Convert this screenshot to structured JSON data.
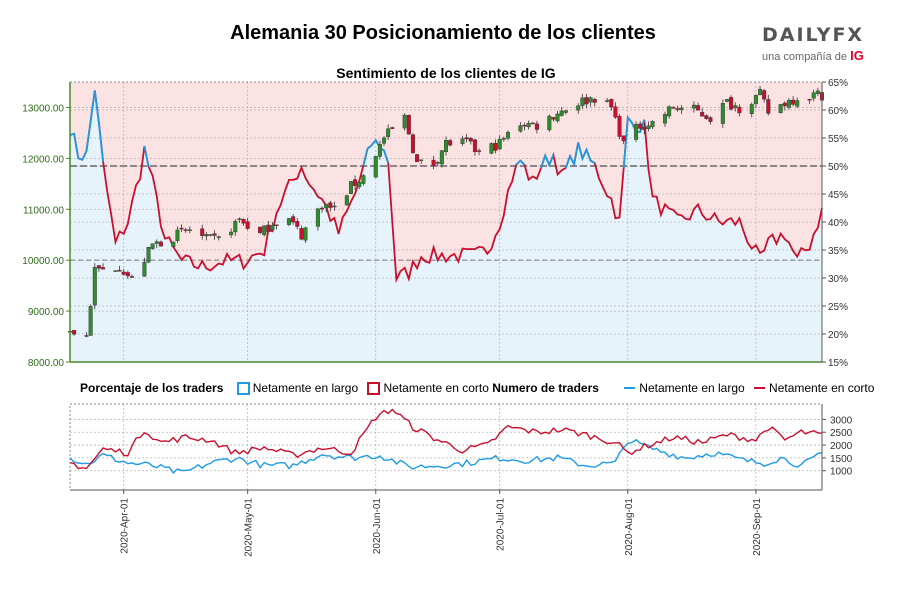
{
  "header": {
    "title": "Alemania 30 Posicionamiento de los clientes",
    "subtitle": "Sentimiento de los clientes de IG",
    "logo_main": "DAILYFX",
    "logo_sub": "una compañía de",
    "logo_brand": "IG"
  },
  "colors": {
    "long": "#1f9be2",
    "short": "#c8102e",
    "long_fill": "#e6f3fb",
    "short_fill": "#fbe3e3",
    "candle_up": "#2e8b2e",
    "candle_down": "#c8102e",
    "axis_left": "#4a8a2a"
  },
  "legend": {
    "pct_title": "Porcentaje de los traders",
    "pct_long": "Netamente en largo",
    "pct_short": "Netamente en corto",
    "num_title": "Numero de traders",
    "num_long": "Netamente en largo",
    "num_short": "Netamente en corto"
  },
  "chart_data": [
    {
      "type": "candlestick_with_sentiment",
      "title": "Sentimiento de los clientes de IG",
      "price_axis": {
        "side": "left",
        "min": 8000,
        "max": 13500,
        "ticks": [
          "8000.00",
          "9000.00",
          "10000.00",
          "11000.00",
          "12000.00",
          "13000.00"
        ]
      },
      "pct_axis": {
        "side": "right",
        "min": 15,
        "max": 65,
        "ticks": [
          "15%",
          "20%",
          "25%",
          "30%",
          "35%",
          "40%",
          "45%",
          "50%",
          "55%",
          "60%",
          "65%"
        ],
        "reference": 50
      },
      "x_range": [
        "2020-03-19",
        "2020-09-17"
      ],
      "x_ticks": [
        "2020-Apr-01",
        "2020-May-01",
        "2020-Jun-01",
        "2020-Jul-01",
        "2020-Aug-01",
        "2020-Sep-01"
      ],
      "grid": true,
      "price_keypoints": [
        [
          "2020-03-19",
          8600
        ],
        [
          "2020-03-23",
          8500
        ],
        [
          "2020-03-25",
          9800
        ],
        [
          "2020-03-27",
          9800
        ],
        [
          "2020-03-31",
          9900
        ],
        [
          "2020-04-03",
          9600
        ],
        [
          "2020-04-08",
          10300
        ],
        [
          "2020-04-14",
          10500
        ],
        [
          "2020-04-17",
          10600
        ],
        [
          "2020-04-21",
          10400
        ],
        [
          "2020-04-24",
          10400
        ],
        [
          "2020-04-29",
          10800
        ],
        [
          "2020-05-04",
          10500
        ],
        [
          "2020-05-07",
          10750
        ],
        [
          "2020-05-11",
          10800
        ],
        [
          "2020-05-14",
          10500
        ],
        [
          "2020-05-19",
          11100
        ],
        [
          "2020-05-22",
          11000
        ],
        [
          "2020-05-26",
          11450
        ],
        [
          "2020-05-29",
          11650
        ],
        [
          "2020-06-03",
          12400
        ],
        [
          "2020-06-08",
          12800
        ],
        [
          "2020-06-11",
          11900
        ],
        [
          "2020-06-15",
          11900
        ],
        [
          "2020-06-18",
          12300
        ],
        [
          "2020-06-23",
          12300
        ],
        [
          "2020-06-26",
          12100
        ],
        [
          "2020-07-01",
          12300
        ],
        [
          "2020-07-06",
          12700
        ],
        [
          "2020-07-10",
          12650
        ],
        [
          "2020-07-15",
          12900
        ],
        [
          "2020-07-20",
          13100
        ],
        [
          "2020-07-24",
          13200
        ],
        [
          "2020-07-28",
          13000
        ],
        [
          "2020-07-31",
          12300
        ],
        [
          "2020-08-04",
          12650
        ],
        [
          "2020-08-07",
          12700
        ],
        [
          "2020-08-12",
          13000
        ],
        [
          "2020-08-17",
          12950
        ],
        [
          "2020-08-21",
          12800
        ],
        [
          "2020-08-25",
          13100
        ],
        [
          "2020-08-28",
          13000
        ],
        [
          "2020-09-02",
          13250
        ],
        [
          "2020-09-04",
          12900
        ],
        [
          "2020-09-08",
          13100
        ],
        [
          "2020-09-11",
          13200
        ],
        [
          "2020-09-16",
          13250
        ]
      ],
      "long_pct": [
        [
          "2020-03-19",
          57
        ],
        [
          "2020-03-21",
          52
        ],
        [
          "2020-03-23",
          52
        ],
        [
          "2020-03-25",
          64
        ],
        [
          "2020-03-27",
          50
        ],
        [
          "2020-03-30",
          36
        ],
        [
          "2020-04-02",
          40
        ],
        [
          "2020-04-05",
          49
        ],
        [
          "2020-04-06",
          53
        ],
        [
          "2020-04-08",
          47
        ],
        [
          "2020-04-11",
          37
        ],
        [
          "2020-04-15",
          33
        ],
        [
          "2020-04-20",
          32
        ],
        [
          "2020-04-25",
          33
        ],
        [
          "2020-04-30",
          33
        ],
        [
          "2020-05-05",
          35
        ],
        [
          "2020-05-08",
          42
        ],
        [
          "2020-05-10",
          45
        ],
        [
          "2020-05-14",
          50
        ],
        [
          "2020-05-16",
          47
        ],
        [
          "2020-05-19",
          44
        ],
        [
          "2020-05-23",
          38
        ],
        [
          "2020-05-27",
          45
        ],
        [
          "2020-05-31",
          54
        ],
        [
          "2020-06-02",
          54
        ],
        [
          "2020-06-04",
          51
        ],
        [
          "2020-06-06",
          30
        ],
        [
          "2020-06-09",
          31
        ],
        [
          "2020-06-12",
          34
        ],
        [
          "2020-06-16",
          34
        ],
        [
          "2020-06-20",
          34
        ],
        [
          "2020-06-25",
          34
        ],
        [
          "2020-06-28",
          35
        ],
        [
          "2020-07-01",
          40
        ],
        [
          "2020-07-04",
          48
        ],
        [
          "2020-07-06",
          51
        ],
        [
          "2020-07-09",
          47
        ],
        [
          "2020-07-11",
          50
        ],
        [
          "2020-07-14",
          52
        ],
        [
          "2020-07-16",
          48
        ],
        [
          "2020-07-20",
          53
        ],
        [
          "2020-07-24",
          50
        ],
        [
          "2020-07-28",
          44
        ],
        [
          "2020-07-30",
          40
        ],
        [
          "2020-08-01",
          58
        ],
        [
          "2020-08-05",
          57
        ],
        [
          "2020-08-07",
          44
        ],
        [
          "2020-08-13",
          40
        ],
        [
          "2020-08-18",
          42
        ],
        [
          "2020-08-23",
          40
        ],
        [
          "2020-08-28",
          40
        ],
        [
          "2020-09-02",
          33
        ],
        [
          "2020-09-04",
          36
        ],
        [
          "2020-09-08",
          38
        ],
        [
          "2020-09-11",
          33
        ],
        [
          "2020-09-14",
          36
        ],
        [
          "2020-09-17",
          42
        ]
      ],
      "short_pct": "100 - long_pct"
    },
    {
      "type": "line",
      "title": "Numero de traders",
      "y_axis": {
        "side": "right",
        "min": 250,
        "max": 3600,
        "ticks": [
          "1000",
          "1500",
          "2000",
          "2500",
          "3000"
        ]
      },
      "series": [
        {
          "name": "Netamente en largo",
          "values_keypoints": [
            [
              "2020-03-19",
              1500
            ],
            [
              "2020-03-23",
              1250
            ],
            [
              "2020-03-27",
              1600
            ],
            [
              "2020-04-02",
              1300
            ],
            [
              "2020-04-08",
              1200
            ],
            [
              "2020-04-15",
              900
            ],
            [
              "2020-04-22",
              1300
            ],
            [
              "2020-04-28",
              1500
            ],
            [
              "2020-05-05",
              1200
            ],
            [
              "2020-05-12",
              1200
            ],
            [
              "2020-05-19",
              1650
            ],
            [
              "2020-05-26",
              1500
            ],
            [
              "2020-06-02",
              1600
            ],
            [
              "2020-06-09",
              1150
            ],
            [
              "2020-06-16",
              1200
            ],
            [
              "2020-06-23",
              1300
            ],
            [
              "2020-07-01",
              1500
            ],
            [
              "2020-07-08",
              1400
            ],
            [
              "2020-07-15",
              1500
            ],
            [
              "2020-07-22",
              1200
            ],
            [
              "2020-07-29",
              1300
            ],
            [
              "2020-08-01",
              2200
            ],
            [
              "2020-08-08",
              1800
            ],
            [
              "2020-08-15",
              1500
            ],
            [
              "2020-08-22",
              1700
            ],
            [
              "2020-08-29",
              1400
            ],
            [
              "2020-09-03",
              1300
            ],
            [
              "2020-09-07",
              1500
            ],
            [
              "2020-09-12",
              1200
            ],
            [
              "2020-09-17",
              1650
            ]
          ]
        },
        {
          "name": "Netamente en corto",
          "values_keypoints": [
            [
              "2020-03-19",
              1300
            ],
            [
              "2020-03-23",
              1100
            ],
            [
              "2020-03-27",
              1850
            ],
            [
              "2020-04-02",
              1700
            ],
            [
              "2020-04-06",
              2600
            ],
            [
              "2020-04-10",
              2100
            ],
            [
              "2020-04-16",
              2300
            ],
            [
              "2020-04-22",
              2200
            ],
            [
              "2020-04-28",
              1700
            ],
            [
              "2020-05-05",
              1900
            ],
            [
              "2020-05-12",
              1600
            ],
            [
              "2020-05-19",
              1900
            ],
            [
              "2020-05-26",
              1700
            ],
            [
              "2020-06-01",
              3100
            ],
            [
              "2020-06-05",
              3400
            ],
            [
              "2020-06-10",
              2700
            ],
            [
              "2020-06-16",
              2200
            ],
            [
              "2020-06-22",
              1800
            ],
            [
              "2020-06-28",
              2000
            ],
            [
              "2020-07-03",
              2700
            ],
            [
              "2020-07-10",
              2500
            ],
            [
              "2020-07-16",
              2600
            ],
            [
              "2020-07-22",
              2400
            ],
            [
              "2020-07-29",
              2100
            ],
            [
              "2020-08-01",
              1700
            ],
            [
              "2020-08-06",
              2000
            ],
            [
              "2020-08-12",
              2300
            ],
            [
              "2020-08-19",
              2100
            ],
            [
              "2020-08-25",
              2400
            ],
            [
              "2020-09-01",
              2200
            ],
            [
              "2020-09-04",
              2700
            ],
            [
              "2020-09-08",
              2200
            ],
            [
              "2020-09-12",
              2500
            ],
            [
              "2020-09-17",
              2400
            ]
          ]
        }
      ]
    }
  ]
}
